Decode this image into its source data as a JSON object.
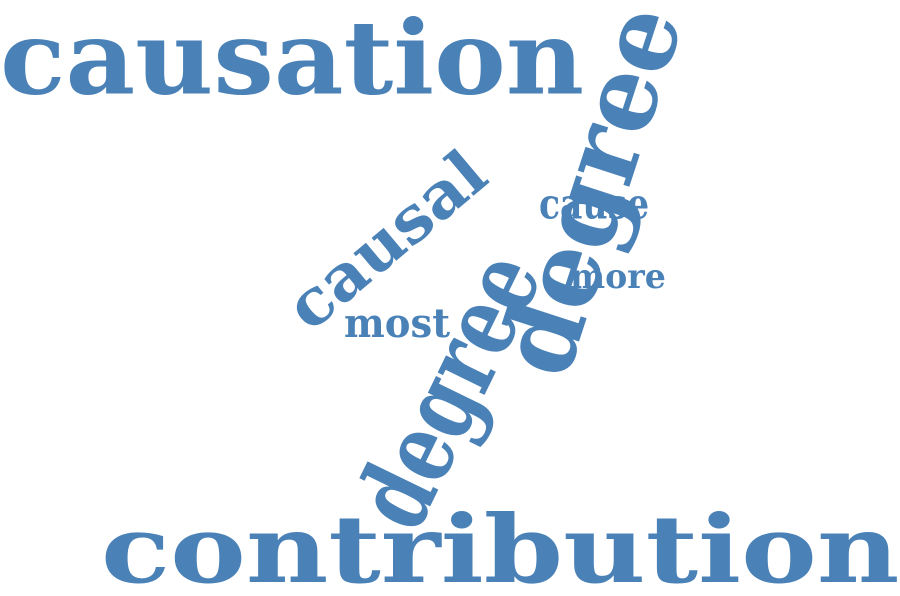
{
  "cloud": {
    "color": "#4a82b8",
    "words": {
      "causation": "causation",
      "degree_rotated": "degree",
      "contribution": "contribution",
      "degree": "degree",
      "causal": "causal",
      "cause": "cause",
      "more": "more",
      "most": "most"
    }
  }
}
